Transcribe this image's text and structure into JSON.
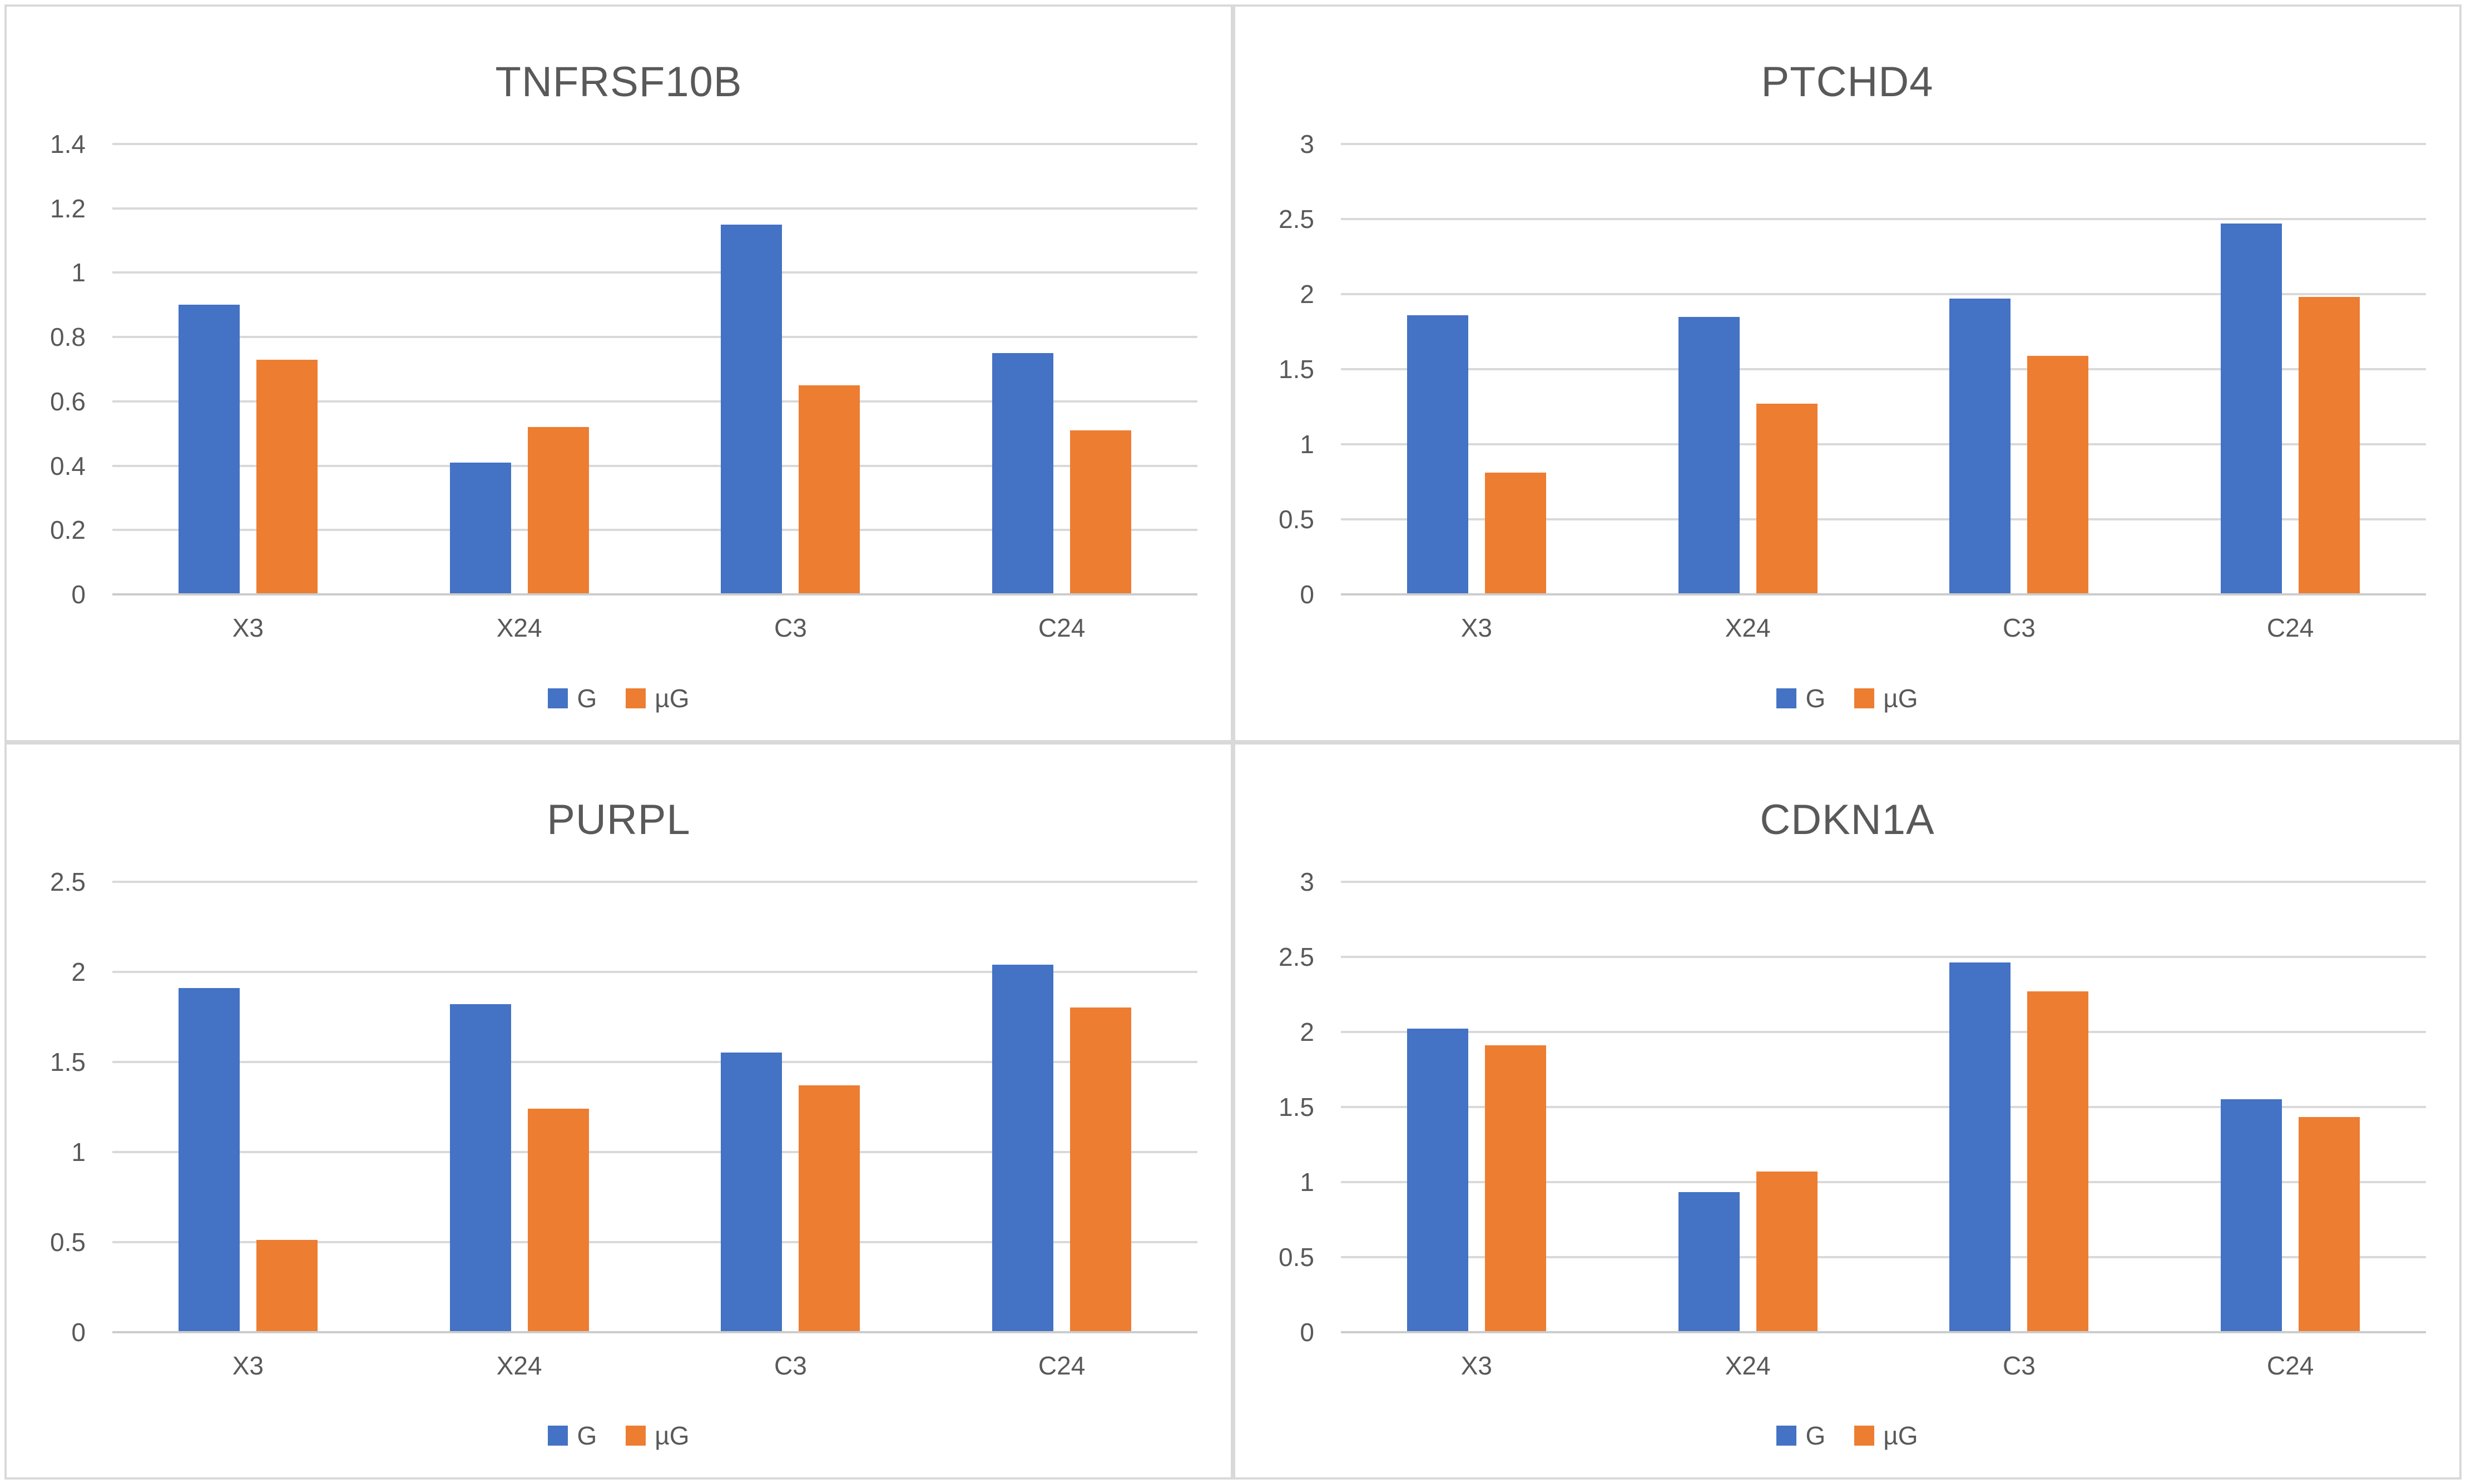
{
  "colors": {
    "series_g": "#4472C4",
    "series_ug": "#ED7D31",
    "gridline": "#D9D9D9",
    "axis_line": "#CCCCCC",
    "text": "#595959",
    "panel_border": "#D9D9D9",
    "background": "#FFFFFF"
  },
  "legend": {
    "position": "bottom",
    "items": [
      {
        "label": "G",
        "color": "#4472C4"
      },
      {
        "label": "µG",
        "color": "#ED7D31"
      }
    ]
  },
  "chart_data": [
    {
      "type": "bar",
      "title": "TNFRSF10B",
      "categories": [
        "X3",
        "X24",
        "C3",
        "C24"
      ],
      "series": [
        {
          "name": "G",
          "color": "#4472C4",
          "values": [
            0.9,
            0.41,
            1.15,
            0.75
          ]
        },
        {
          "name": "µG",
          "color": "#ED7D31",
          "values": [
            0.73,
            0.52,
            0.65,
            0.51
          ]
        }
      ],
      "xlabel": "",
      "ylabel": "",
      "ylim": [
        0,
        1.4
      ],
      "yticks": [
        0,
        0.2,
        0.4,
        0.6,
        0.8,
        1,
        1.2,
        1.4
      ],
      "ytick_labels": [
        "0",
        "0.2",
        "0.4",
        "0.6",
        "0.8",
        "1",
        "1.2",
        "1.4"
      ],
      "grid": true,
      "legend_position": "bottom"
    },
    {
      "type": "bar",
      "title": "PTCHD4",
      "categories": [
        "X3",
        "X24",
        "C3",
        "C24"
      ],
      "series": [
        {
          "name": "G",
          "color": "#4472C4",
          "values": [
            1.86,
            1.85,
            1.97,
            2.47
          ]
        },
        {
          "name": "µG",
          "color": "#ED7D31",
          "values": [
            0.81,
            1.27,
            1.59,
            1.98
          ]
        }
      ],
      "xlabel": "",
      "ylabel": "",
      "ylim": [
        0,
        3
      ],
      "yticks": [
        0,
        0.5,
        1,
        1.5,
        2,
        2.5,
        3
      ],
      "ytick_labels": [
        "0",
        "0.5",
        "1",
        "1.5",
        "2",
        "2.5",
        "3"
      ],
      "grid": true,
      "legend_position": "bottom"
    },
    {
      "type": "bar",
      "title": "PURPL",
      "categories": [
        "X3",
        "X24",
        "C3",
        "C24"
      ],
      "series": [
        {
          "name": "G",
          "color": "#4472C4",
          "values": [
            1.91,
            1.82,
            1.55,
            2.04
          ]
        },
        {
          "name": "µG",
          "color": "#ED7D31",
          "values": [
            0.51,
            1.24,
            1.37,
            1.8
          ]
        }
      ],
      "xlabel": "",
      "ylabel": "",
      "ylim": [
        0,
        2.5
      ],
      "yticks": [
        0,
        0.5,
        1,
        1.5,
        2,
        2.5
      ],
      "ytick_labels": [
        "0",
        "0.5",
        "1",
        "1.5",
        "2",
        "2.5"
      ],
      "grid": true,
      "legend_position": "bottom"
    },
    {
      "type": "bar",
      "title": "CDKN1A",
      "categories": [
        "X3",
        "X24",
        "C3",
        "C24"
      ],
      "series": [
        {
          "name": "G",
          "color": "#4472C4",
          "values": [
            2.02,
            0.93,
            2.46,
            1.55
          ]
        },
        {
          "name": "µG",
          "color": "#ED7D31",
          "values": [
            1.91,
            1.07,
            2.27,
            1.43
          ]
        }
      ],
      "xlabel": "",
      "ylabel": "",
      "ylim": [
        0,
        3
      ],
      "yticks": [
        0,
        0.5,
        1,
        1.5,
        2,
        2.5,
        3
      ],
      "ytick_labels": [
        "0",
        "0.5",
        "1",
        "1.5",
        "2",
        "2.5",
        "3"
      ],
      "grid": true,
      "legend_position": "bottom"
    }
  ]
}
